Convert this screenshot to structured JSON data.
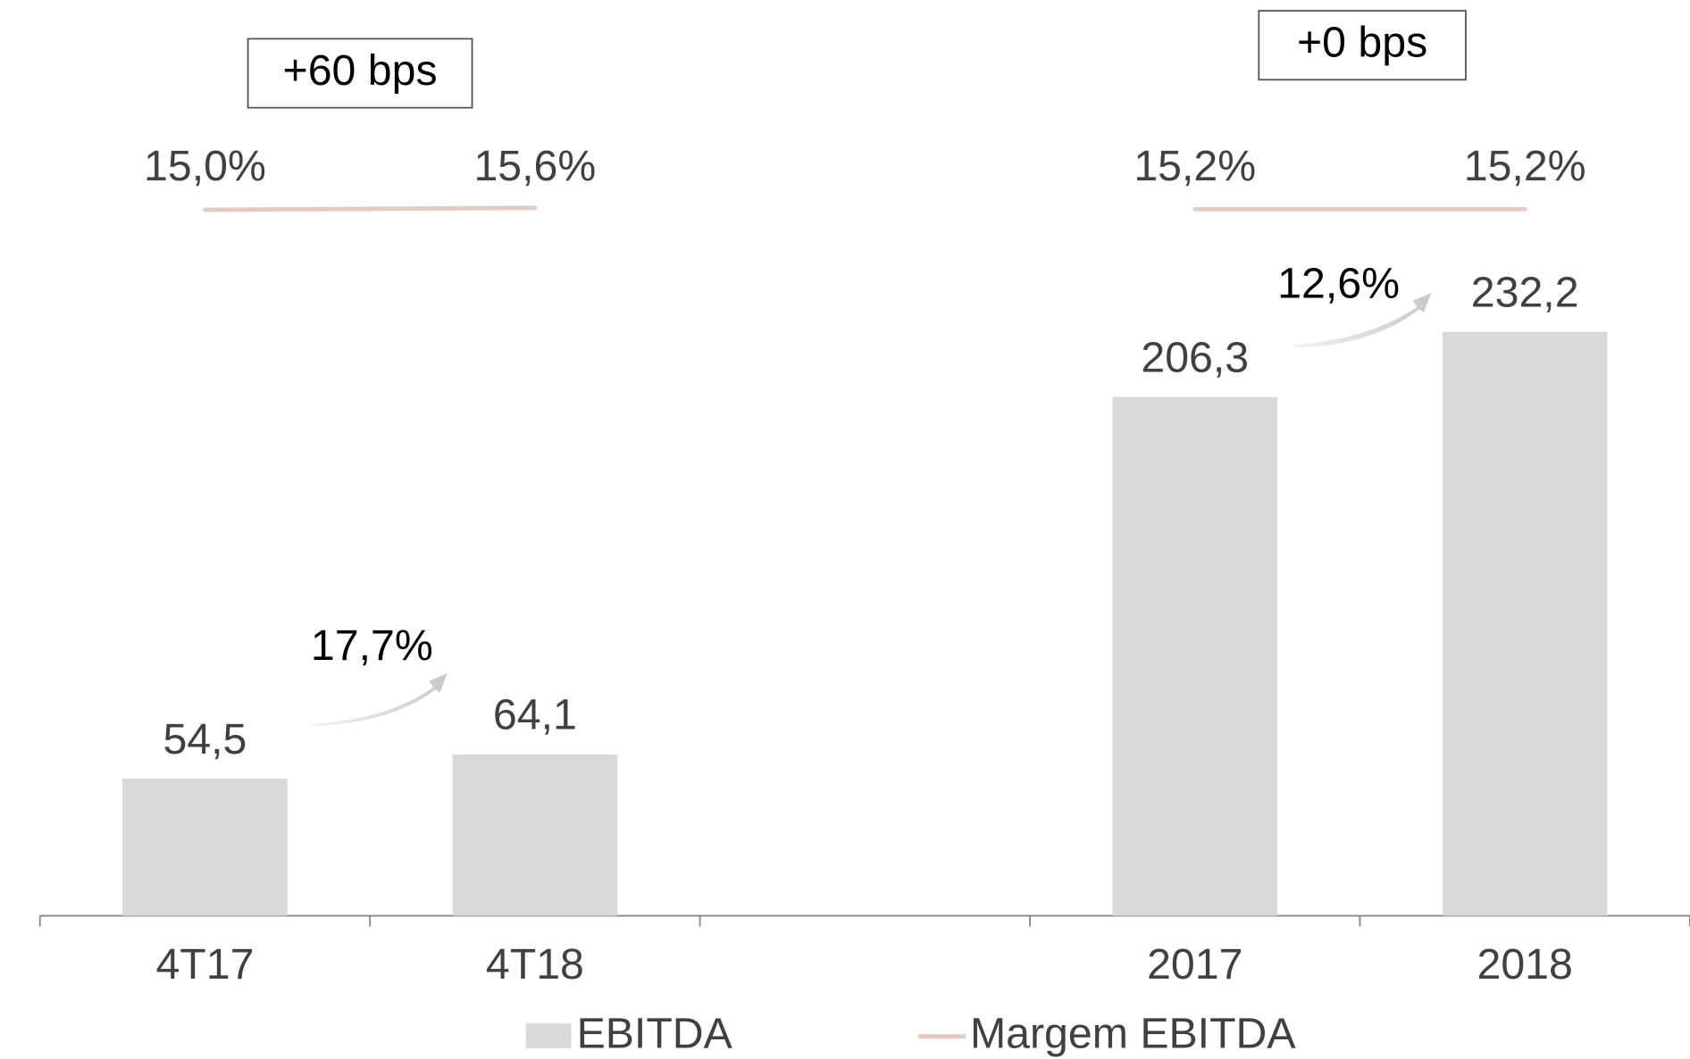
{
  "chart_data": {
    "type": "bar",
    "categories": [
      "4T17",
      "4T18",
      null,
      "2017",
      "2018"
    ],
    "series": [
      {
        "name": "EBITDA",
        "type": "bar",
        "color": "#d9d9d9",
        "values": [
          54.5,
          64.1,
          null,
          206.3,
          232.2
        ],
        "value_labels": [
          "54,5",
          "64,1",
          null,
          "206,3",
          "232,2"
        ]
      },
      {
        "name": "Margem EBITDA",
        "type": "line",
        "color": "#e6cabd",
        "values": [
          15.0,
          15.6,
          null,
          15.2,
          15.2
        ],
        "value_labels": [
          "15,0%",
          "15,6%",
          null,
          "15,2%",
          "15,2%"
        ]
      }
    ],
    "margin_changes": [
      "+60 bps",
      "+0 bps"
    ],
    "growth_labels": [
      "17,7%",
      "12,6%"
    ],
    "legend": "bottom"
  }
}
